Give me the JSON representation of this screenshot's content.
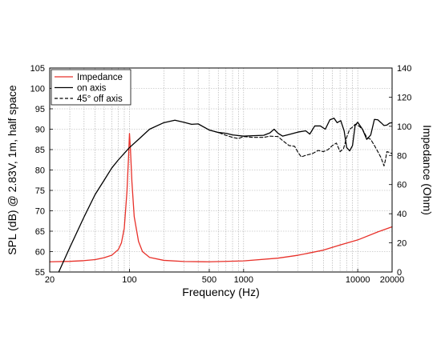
{
  "chart_data": {
    "type": "line",
    "xlabel": "Frequency (Hz)",
    "ylabel_left": "SPL (dB) @ 2.83V, 1m, half space",
    "ylabel_right": "Impedance (Ohm)",
    "x_scale": "log",
    "xlim": [
      20,
      20000
    ],
    "ylim_left": [
      55,
      105
    ],
    "ylim_right": [
      0,
      140
    ],
    "x_tick_labels": [
      "20",
      "100",
      "500",
      "1000",
      "10000",
      "20000"
    ],
    "x_tick_values": [
      20,
      100,
      500,
      1000,
      10000,
      20000
    ],
    "y_left_ticks": [
      "55",
      "60",
      "65",
      "70",
      "75",
      "80",
      "85",
      "90",
      "95",
      "100",
      "105"
    ],
    "y_left_tick_values": [
      55,
      60,
      65,
      70,
      75,
      80,
      85,
      90,
      95,
      100,
      105
    ],
    "y_right_ticks": [
      "0",
      "20",
      "40",
      "60",
      "80",
      "100",
      "120",
      "140"
    ],
    "y_right_tick_values": [
      0,
      20,
      40,
      60,
      80,
      100,
      120,
      140
    ],
    "grid": true,
    "legend_position": "top-left",
    "series": [
      {
        "name": "Impedance",
        "axis": "right",
        "color": "#e8312a",
        "dash": "solid",
        "points": [
          [
            20,
            7
          ],
          [
            30,
            7.3
          ],
          [
            40,
            7.8
          ],
          [
            50,
            8.5
          ],
          [
            60,
            9.8
          ],
          [
            70,
            11.5
          ],
          [
            80,
            15.5
          ],
          [
            85,
            20
          ],
          [
            90,
            30
          ],
          [
            95,
            55
          ],
          [
            98,
            78
          ],
          [
            100,
            95
          ],
          [
            102,
            84
          ],
          [
            105,
            62
          ],
          [
            110,
            38
          ],
          [
            120,
            21
          ],
          [
            130,
            14
          ],
          [
            150,
            10
          ],
          [
            200,
            8
          ],
          [
            300,
            7.2
          ],
          [
            500,
            7
          ],
          [
            1000,
            7.6
          ],
          [
            2000,
            9.5
          ],
          [
            3000,
            11.5
          ],
          [
            5000,
            15
          ],
          [
            7000,
            18.5
          ],
          [
            10000,
            22
          ],
          [
            15000,
            27.5
          ],
          [
            20000,
            31
          ]
        ]
      },
      {
        "name": "on axis",
        "axis": "left",
        "color": "#000000",
        "dash": "solid",
        "points": [
          [
            24,
            55
          ],
          [
            30,
            61
          ],
          [
            40,
            68.5
          ],
          [
            50,
            74
          ],
          [
            60,
            77.5
          ],
          [
            70,
            80.5
          ],
          [
            80,
            82.5
          ],
          [
            100,
            85.5
          ],
          [
            120,
            87.5
          ],
          [
            150,
            90
          ],
          [
            200,
            91.6
          ],
          [
            250,
            92.2
          ],
          [
            300,
            91.7
          ],
          [
            350,
            91.2
          ],
          [
            400,
            91.3
          ],
          [
            500,
            89.8
          ],
          [
            600,
            89.2
          ],
          [
            700,
            89
          ],
          [
            800,
            88.6
          ],
          [
            1000,
            88.3
          ],
          [
            1200,
            88.4
          ],
          [
            1500,
            88.5
          ],
          [
            1700,
            89.1
          ],
          [
            1850,
            90
          ],
          [
            2000,
            89
          ],
          [
            2200,
            88.3
          ],
          [
            2500,
            88.7
          ],
          [
            3000,
            89.3
          ],
          [
            3500,
            89.6
          ],
          [
            3800,
            88.8
          ],
          [
            4200,
            90.8
          ],
          [
            4700,
            90.8
          ],
          [
            5200,
            90
          ],
          [
            5700,
            92.3
          ],
          [
            6200,
            92.7
          ],
          [
            6600,
            91.6
          ],
          [
            7100,
            92.1
          ],
          [
            7600,
            89.6
          ],
          [
            8000,
            85.5
          ],
          [
            8500,
            84.7
          ],
          [
            9000,
            86
          ],
          [
            9500,
            91
          ],
          [
            10000,
            91.7
          ],
          [
            11000,
            90
          ],
          [
            12000,
            87.5
          ],
          [
            13000,
            88.6
          ],
          [
            14000,
            92.4
          ],
          [
            15000,
            92.3
          ],
          [
            16000,
            91.6
          ],
          [
            17000,
            90.9
          ],
          [
            18000,
            91
          ],
          [
            19000,
            91.5
          ],
          [
            20000,
            91.6
          ]
        ]
      },
      {
        "name": "45° off axis",
        "axis": "left",
        "color": "#000000",
        "dash": "dashed",
        "points": [
          [
            500,
            89.8
          ],
          [
            600,
            89.2
          ],
          [
            700,
            88.5
          ],
          [
            800,
            88
          ],
          [
            900,
            87.7
          ],
          [
            1000,
            88.2
          ],
          [
            1200,
            88
          ],
          [
            1500,
            88
          ],
          [
            1700,
            88.3
          ],
          [
            2000,
            88.2
          ],
          [
            2200,
            87.2
          ],
          [
            2500,
            86
          ],
          [
            2800,
            85.8
          ],
          [
            3000,
            84.3
          ],
          [
            3200,
            83.2
          ],
          [
            3500,
            83.6
          ],
          [
            4000,
            84
          ],
          [
            4500,
            84.8
          ],
          [
            5000,
            84.5
          ],
          [
            5500,
            85
          ],
          [
            6000,
            86
          ],
          [
            6500,
            86.6
          ],
          [
            7000,
            84.5
          ],
          [
            7500,
            85.2
          ],
          [
            8000,
            88
          ],
          [
            8500,
            90
          ],
          [
            9000,
            90.5
          ],
          [
            9500,
            91.2
          ],
          [
            10000,
            91
          ],
          [
            11000,
            90
          ],
          [
            12000,
            88
          ],
          [
            13000,
            87.5
          ],
          [
            14000,
            86
          ],
          [
            15000,
            84.5
          ],
          [
            16000,
            83
          ],
          [
            17000,
            81
          ],
          [
            17500,
            82.5
          ],
          [
            18000,
            84.5
          ],
          [
            19000,
            84.3
          ],
          [
            20000,
            84
          ]
        ]
      }
    ]
  }
}
